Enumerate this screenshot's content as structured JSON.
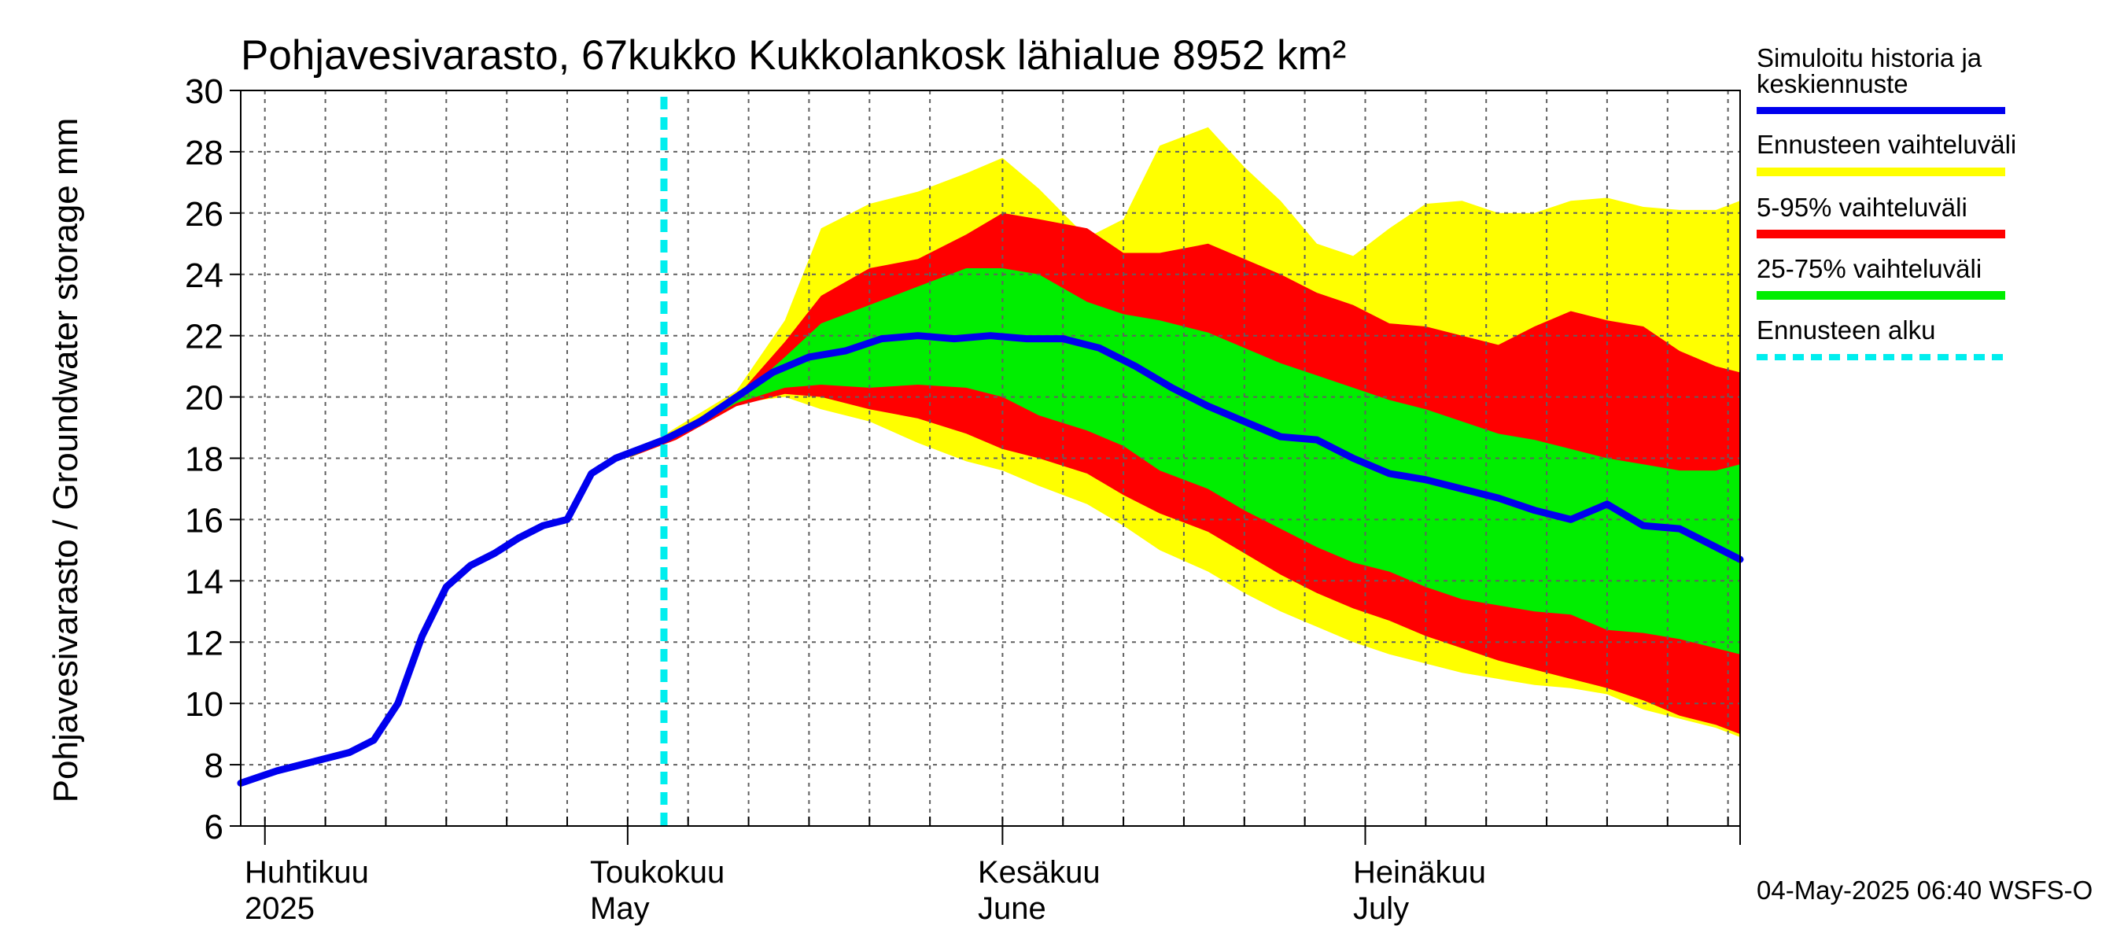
{
  "title": "Pohjavesivarasto, 67kukko Kukkolankosk lähialue 8952 km²",
  "y_axis_label": "Pohjavesivarasto / Groundwater storage   mm",
  "x_axis": {
    "months": [
      {
        "fi": "Huhtikuu",
        "en": "2025"
      },
      {
        "fi": "Toukokuu",
        "en": "May"
      },
      {
        "fi": "Kesäkuu",
        "en": "June"
      },
      {
        "fi": "Heinäkuu",
        "en": "July"
      }
    ]
  },
  "legend": {
    "items": [
      {
        "label": "Simuloitu historia ja keskiennuste",
        "line1": "Simuloitu historia ja",
        "line2": "keskiennuste",
        "color": "#0000ee"
      },
      {
        "label": "Ennusteen vaihteluväli",
        "color": "#ffff00"
      },
      {
        "label": "5-95% vaihteluväli",
        "color": "#ff0000"
      },
      {
        "label": "25-75% vaihteluväli",
        "color": "#00ee00"
      },
      {
        "label": "Ennusteen alku",
        "color": "#00eeee"
      }
    ]
  },
  "footer": "04-May-2025 06:40 WSFS-O",
  "chart_data": {
    "type": "area",
    "title": "Pohjavesivarasto, 67kukko Kukkolankosk lähialue 8952 km²",
    "ylabel": "Pohjavesivarasto / Groundwater storage   mm",
    "ylim": [
      6,
      30
    ],
    "yticks": [
      6,
      8,
      10,
      12,
      14,
      16,
      18,
      20,
      22,
      24,
      26,
      28,
      30
    ],
    "xlim": [
      "2025-03-30",
      "2025-08-01"
    ],
    "grid": true,
    "forecast_start": "2025-05-04",
    "history": {
      "name": "Simuloitu historia ja keskiennuste",
      "x": [
        "2025-03-30",
        "2025-04-02",
        "2025-04-05",
        "2025-04-08",
        "2025-04-10",
        "2025-04-12",
        "2025-04-14",
        "2025-04-16",
        "2025-04-18",
        "2025-04-20",
        "2025-04-22",
        "2025-04-24",
        "2025-04-26",
        "2025-04-28",
        "2025-04-30",
        "2025-05-02",
        "2025-05-04"
      ],
      "y": [
        7.4,
        7.8,
        8.1,
        8.4,
        8.8,
        10.0,
        12.2,
        13.8,
        14.5,
        14.9,
        15.4,
        15.8,
        16.0,
        17.5,
        18.0,
        18.3,
        18.6
      ]
    },
    "series": [
      {
        "name": "Simuloitu historia ja keskiennuste",
        "x": [
          "2025-05-04",
          "2025-05-07",
          "2025-05-10",
          "2025-05-13",
          "2025-05-16",
          "2025-05-19",
          "2025-05-22",
          "2025-05-25",
          "2025-05-28",
          "2025-05-31",
          "2025-06-03",
          "2025-06-06",
          "2025-06-09",
          "2025-06-12",
          "2025-06-15",
          "2025-06-18",
          "2025-06-21",
          "2025-06-24",
          "2025-06-27",
          "2025-06-30",
          "2025-07-03",
          "2025-07-06",
          "2025-07-09",
          "2025-07-12",
          "2025-07-15",
          "2025-07-18",
          "2025-07-21",
          "2025-07-24",
          "2025-07-27",
          "2025-07-30",
          "2025-08-01"
        ],
        "y": [
          18.6,
          19.2,
          20.0,
          20.8,
          21.3,
          21.5,
          21.9,
          22.0,
          21.9,
          22.0,
          21.9,
          21.9,
          21.6,
          21.0,
          20.3,
          19.7,
          19.2,
          18.7,
          18.6,
          18.0,
          17.5,
          17.3,
          17.0,
          16.7,
          16.3,
          16.0,
          16.5,
          15.8,
          15.7,
          15.1,
          14.7
        ]
      }
    ],
    "bands": [
      {
        "name": "Ennusteen vaihteluväli",
        "x": [
          "2025-05-01",
          "2025-05-05",
          "2025-05-10",
          "2025-05-14",
          "2025-05-17",
          "2025-05-21",
          "2025-05-25",
          "2025-05-29",
          "2025-06-01",
          "2025-06-04",
          "2025-06-08",
          "2025-06-11",
          "2025-06-14",
          "2025-06-18",
          "2025-06-21",
          "2025-06-24",
          "2025-06-27",
          "2025-06-30",
          "2025-07-03",
          "2025-07-06",
          "2025-07-09",
          "2025-07-12",
          "2025-07-15",
          "2025-07-18",
          "2025-07-21",
          "2025-07-24",
          "2025-07-27",
          "2025-07-30",
          "2025-08-01"
        ],
        "low": [
          18.0,
          18.7,
          19.8,
          20.0,
          19.6,
          19.2,
          18.5,
          17.9,
          17.6,
          17.1,
          16.5,
          15.8,
          15.0,
          14.3,
          13.6,
          13.0,
          12.5,
          12.0,
          11.6,
          11.3,
          11.0,
          10.8,
          10.6,
          10.5,
          10.3,
          9.8,
          9.5,
          9.2,
          8.9
        ],
        "high": [
          18.0,
          19.0,
          20.2,
          22.5,
          25.5,
          26.3,
          26.7,
          27.3,
          27.8,
          26.8,
          25.2,
          25.8,
          28.2,
          28.8,
          27.5,
          26.4,
          25.0,
          24.6,
          25.5,
          26.3,
          26.4,
          26.0,
          26.0,
          26.4,
          26.5,
          26.2,
          26.1,
          26.1,
          26.4
        ]
      },
      {
        "name": "5-95% vaihteluväli",
        "x": [
          "2025-05-01",
          "2025-05-05",
          "2025-05-10",
          "2025-05-14",
          "2025-05-17",
          "2025-05-21",
          "2025-05-25",
          "2025-05-29",
          "2025-06-01",
          "2025-06-04",
          "2025-06-08",
          "2025-06-11",
          "2025-06-14",
          "2025-06-18",
          "2025-06-21",
          "2025-06-24",
          "2025-06-27",
          "2025-06-30",
          "2025-07-03",
          "2025-07-06",
          "2025-07-09",
          "2025-07-12",
          "2025-07-15",
          "2025-07-18",
          "2025-07-21",
          "2025-07-24",
          "2025-07-27",
          "2025-07-30",
          "2025-08-01"
        ],
        "low": [
          18.0,
          18.6,
          19.7,
          20.1,
          20.0,
          19.6,
          19.3,
          18.8,
          18.3,
          18.0,
          17.5,
          16.8,
          16.2,
          15.6,
          14.9,
          14.2,
          13.6,
          13.1,
          12.7,
          12.2,
          11.8,
          11.4,
          11.1,
          10.8,
          10.5,
          10.1,
          9.6,
          9.3,
          9.0
        ],
        "high": [
          18.0,
          18.9,
          20.0,
          21.8,
          23.3,
          24.2,
          24.5,
          25.3,
          26.0,
          25.8,
          25.5,
          24.7,
          24.7,
          25.0,
          24.5,
          24.0,
          23.4,
          23.0,
          22.4,
          22.3,
          22.0,
          21.7,
          22.3,
          22.8,
          22.5,
          22.3,
          21.5,
          21.0,
          20.8
        ]
      },
      {
        "name": "25-75% vaihteluväli",
        "x": [
          "2025-05-01",
          "2025-05-05",
          "2025-05-10",
          "2025-05-14",
          "2025-05-17",
          "2025-05-21",
          "2025-05-25",
          "2025-05-29",
          "2025-06-01",
          "2025-06-04",
          "2025-06-08",
          "2025-06-11",
          "2025-06-14",
          "2025-06-18",
          "2025-06-21",
          "2025-06-24",
          "2025-06-27",
          "2025-06-30",
          "2025-07-03",
          "2025-07-06",
          "2025-07-09",
          "2025-07-12",
          "2025-07-15",
          "2025-07-18",
          "2025-07-21",
          "2025-07-24",
          "2025-07-27",
          "2025-07-30",
          "2025-08-01"
        ],
        "low": [
          18.0,
          18.7,
          19.8,
          20.3,
          20.4,
          20.3,
          20.4,
          20.3,
          20.0,
          19.4,
          18.9,
          18.4,
          17.6,
          17.0,
          16.3,
          15.7,
          15.1,
          14.6,
          14.3,
          13.8,
          13.4,
          13.2,
          13.0,
          12.9,
          12.4,
          12.3,
          12.1,
          11.8,
          11.6
        ],
        "high": [
          18.0,
          18.8,
          19.9,
          21.3,
          22.4,
          23.0,
          23.6,
          24.2,
          24.2,
          24.0,
          23.1,
          22.7,
          22.5,
          22.1,
          21.6,
          21.1,
          20.7,
          20.3,
          19.9,
          19.6,
          19.2,
          18.8,
          18.6,
          18.3,
          18.0,
          17.8,
          17.6,
          17.6,
          17.8
        ]
      }
    ]
  }
}
